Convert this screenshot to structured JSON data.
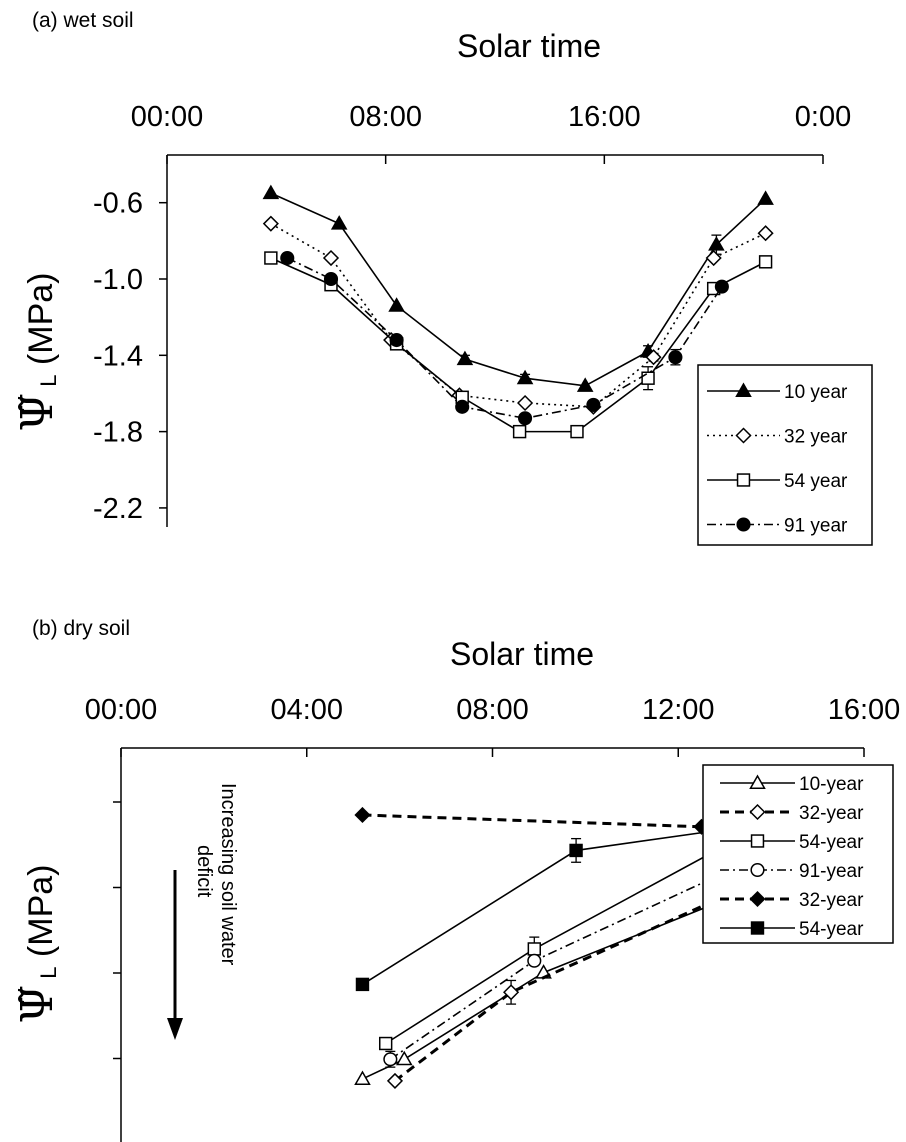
{
  "chart_data": [
    {
      "type": "line",
      "panel_label": "(a) wet soil",
      "xlabel": "Solar time",
      "ylabel": "Ψ̃L (MPa)",
      "x_ticks": [
        0,
        8,
        16,
        24
      ],
      "x_tick_labels": [
        "00:00",
        "08:00",
        "16:00",
        "0:00"
      ],
      "xlim": [
        0,
        24
      ],
      "y_ticks": [
        -0.6,
        -1.0,
        -1.4,
        -1.8,
        -2.2
      ],
      "y_tick_labels": [
        "-0.6",
        "-1.0",
        "-1.4",
        "-1.8",
        "-2.2"
      ],
      "ylim": [
        -2.3,
        -0.35
      ],
      "x_axis_position": "top",
      "legend_position": "bottom-right",
      "grid": false,
      "series": [
        {
          "name": "10 year",
          "marker": "triangle",
          "filled": true,
          "dash": "solid",
          "x": [
            3.8,
            6.3,
            8.4,
            10.9,
            13.1,
            15.3,
            17.6,
            20.1,
            21.9
          ],
          "y": [
            -0.55,
            -0.71,
            -1.14,
            -1.42,
            -1.52,
            -1.56,
            -1.38,
            -0.82,
            -0.58
          ],
          "err": [
            0,
            0,
            0,
            0.02,
            0.02,
            0,
            0.03,
            0.05,
            0
          ]
        },
        {
          "name": "32 year",
          "marker": "diamond",
          "filled": false,
          "dash": "dotted",
          "x": [
            3.8,
            6.0,
            8.2,
            10.7,
            13.1,
            15.6,
            17.8,
            20.0,
            21.9
          ],
          "y": [
            -0.71,
            -0.89,
            -1.32,
            -1.61,
            -1.65,
            -1.67,
            -1.41,
            -0.89,
            -0.76
          ],
          "err": [
            0,
            0,
            0,
            0,
            0,
            0,
            0.02,
            0,
            0
          ]
        },
        {
          "name": "54 year",
          "marker": "square",
          "filled": false,
          "dash": "solid",
          "x": [
            3.8,
            6.0,
            8.4,
            10.8,
            12.9,
            15.0,
            17.6,
            20.0,
            21.9
          ],
          "y": [
            -0.89,
            -1.03,
            -1.34,
            -1.62,
            -1.8,
            -1.8,
            -1.52,
            -1.05,
            -0.91
          ],
          "err": [
            0,
            0,
            0,
            0,
            0,
            0,
            0.06,
            0,
            0
          ]
        },
        {
          "name": "91 year",
          "marker": "circle",
          "filled": true,
          "dash": "dashdot",
          "x": [
            4.4,
            6.0,
            8.4,
            10.8,
            13.1,
            15.6,
            18.6,
            20.3
          ],
          "y": [
            -0.89,
            -1.0,
            -1.32,
            -1.67,
            -1.73,
            -1.66,
            -1.41,
            -1.04
          ],
          "err": [
            0,
            0,
            0,
            0,
            0,
            0,
            0.04,
            0
          ]
        }
      ]
    },
    {
      "type": "line",
      "panel_label": "(b) dry soil",
      "xlabel": "Solar time",
      "ylabel": "Ψ̃L (MPa)",
      "annotation": [
        "Increasing soil water",
        "deficit"
      ],
      "x_ticks": [
        0,
        4,
        8,
        12,
        16
      ],
      "x_tick_labels": [
        "00:00",
        "04:00",
        "08:00",
        "12:00",
        "16:00"
      ],
      "xlim": [
        0,
        16
      ],
      "y_tick_count": 5,
      "ylim": [
        0,
        1
      ],
      "y_tick_labels_shown": false,
      "x_axis_position": "top",
      "legend_position": "top-right",
      "grid": false,
      "series": [
        {
          "name": "10-year",
          "marker": "triangle",
          "filled": false,
          "dash": "solid",
          "x": [
            5.2,
            6.1,
            9.1,
            12.9
          ],
          "y": [
            0.84,
            0.79,
            0.57,
            0.39
          ],
          "err": [
            0,
            0,
            0,
            0.02
          ]
        },
        {
          "name": "32-year",
          "marker": "diamond",
          "filled": false,
          "dash": "bold-dashed",
          "x": [
            5.9,
            8.4,
            13.3
          ],
          "y": [
            0.845,
            0.62,
            0.36
          ],
          "err": [
            0,
            0.03,
            0
          ]
        },
        {
          "name": "54-year",
          "marker": "square",
          "filled": false,
          "dash": "solid",
          "x": [
            5.7,
            8.9,
            13.6
          ],
          "y": [
            0.75,
            0.51,
            0.21
          ],
          "err": [
            0,
            0.03,
            0
          ]
        },
        {
          "name": "91-year",
          "marker": "circle",
          "filled": false,
          "dash": "dashdot",
          "x": [
            5.8,
            8.9,
            13.3
          ],
          "y": [
            0.79,
            0.54,
            0.3
          ],
          "err": [
            0.02,
            0,
            0
          ]
        },
        {
          "name": "32-year",
          "marker": "diamond",
          "filled": true,
          "dash": "bold-dashed",
          "x": [
            5.2,
            12.5
          ],
          "y": [
            0.17,
            0.2
          ],
          "err": [
            0,
            0
          ]
        },
        {
          "name": "54-year",
          "marker": "square",
          "filled": true,
          "dash": "solid",
          "x": [
            5.2,
            9.8,
            12.8
          ],
          "y": [
            0.6,
            0.26,
            0.21
          ],
          "err": [
            0,
            0.03,
            0
          ]
        }
      ]
    }
  ]
}
